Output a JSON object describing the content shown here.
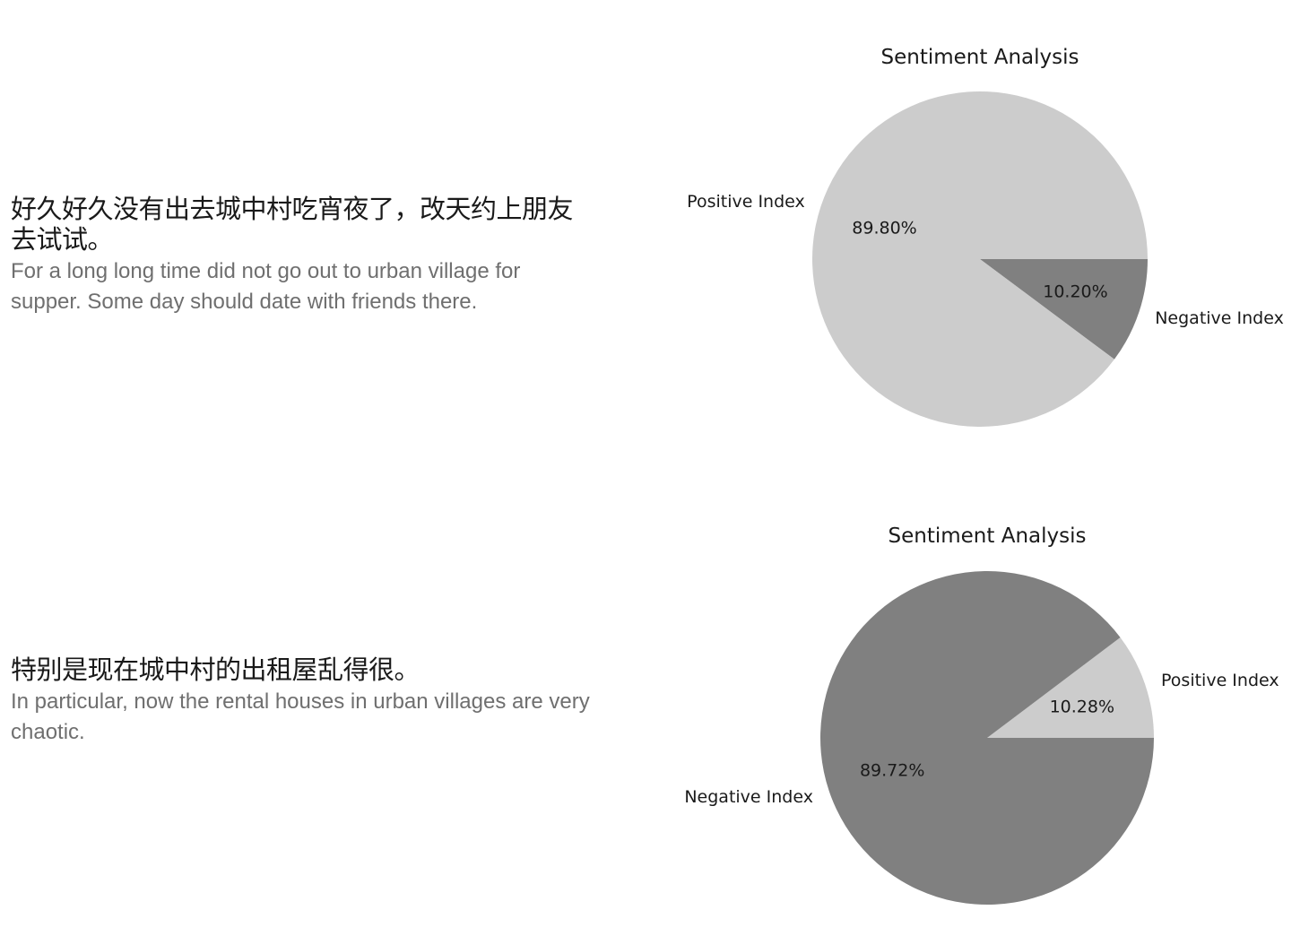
{
  "items": [
    {
      "chinese": "好久好久没有出去城中村吃宵夜了，改天约上朋友去试试。",
      "english": "For a long long time did not go out to urban village for supper. Some day should date with friends there."
    },
    {
      "chinese": "特别是现在城中村的出租屋乱得很。",
      "english": "In particular, now the rental houses in urban villages are very chaotic."
    }
  ],
  "chart_data": [
    {
      "type": "pie",
      "title": "Sentiment Analysis",
      "slices": [
        {
          "label": "Negative Index",
          "value": 10.2,
          "display": "10.20%",
          "color": "#808080"
        },
        {
          "label": "Positive Index",
          "value": 89.8,
          "display": "89.80%",
          "color": "#cccccc"
        }
      ]
    },
    {
      "type": "pie",
      "title": "Sentiment Analysis",
      "slices": [
        {
          "label": "Positive Index",
          "value": 10.28,
          "display": "10.28%",
          "color": "#cccccc"
        },
        {
          "label": "Negative Index",
          "value": 89.72,
          "display": "89.72%",
          "color": "#808080"
        }
      ]
    }
  ]
}
